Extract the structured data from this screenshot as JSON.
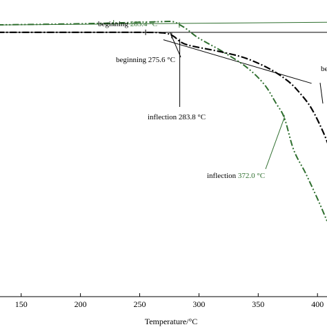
{
  "chart_data": {
    "type": "line",
    "xlabel": "Temperature/°C",
    "xlim": [
      130,
      412
    ],
    "x_ticks": [
      150,
      200,
      250,
      300,
      350,
      400
    ],
    "x_tick_labels": [
      "150",
      "200",
      "250",
      "300",
      "350",
      "400"
    ],
    "ylim": [
      0,
      100
    ],
    "grid": false,
    "series": [
      {
        "style": "dash-dot",
        "color": "#000000",
        "x": [
          130,
          200,
          250,
          270,
          278,
          284,
          290,
          300,
          320,
          340,
          360,
          375,
          385,
          395,
          405,
          412
        ],
        "y": [
          89.1,
          89.1,
          89.1,
          88.9,
          87.9,
          86.0,
          84.9,
          84.0,
          82.4,
          80.3,
          76.7,
          72.7,
          68.7,
          63.4,
          55.3,
          48.1
        ]
      },
      {
        "style": "dash-dot-dot",
        "color": "#2e6e2e",
        "x": [
          130,
          200,
          250,
          268,
          278,
          284,
          290,
          300,
          320,
          340,
          355,
          365,
          372,
          380,
          390,
          400,
          407,
          412
        ],
        "y": [
          91.6,
          92.0,
          92.5,
          92.7,
          92.7,
          91.6,
          90.1,
          87.1,
          82.6,
          77.4,
          71.6,
          65.2,
          60.3,
          49.4,
          41.6,
          33.0,
          26.5,
          21.5
        ]
      }
    ],
    "annotations": [
      {
        "label": "beginning",
        "value": "283.4 °C",
        "series": 1
      },
      {
        "label": "beginning",
        "value": "275.6 °C",
        "series": 0
      },
      {
        "label": "inflection",
        "value": "283.8 °C",
        "series": 0
      },
      {
        "label": "inflection",
        "value": "372.0 °C",
        "series": 1
      },
      {
        "label": "be",
        "value": "",
        "series": 0
      }
    ]
  }
}
